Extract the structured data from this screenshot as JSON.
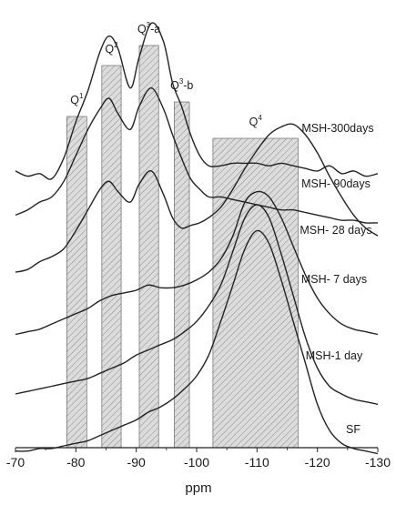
{
  "chart_data": {
    "type": "line",
    "title": "",
    "xlabel": "ppm",
    "ylabel": "",
    "xlim": [
      -70,
      -130
    ],
    "x_reversed": true,
    "x_ticks": [
      -70,
      -80,
      -90,
      -100,
      -110,
      -120,
      -130
    ],
    "x_tick_labels": [
      "-70",
      "-80",
      "-90",
      "-100",
      "-110",
      "-120",
      "-130"
    ],
    "grid": false,
    "legend": "labels at right end of each curve",
    "bands": [
      {
        "label": "Q1",
        "main": "Q",
        "sup": "1",
        "from": -78.5,
        "to": -81.8
      },
      {
        "label": "Q2",
        "main": "Q",
        "sup": "2",
        "from": -84.3,
        "to": -87.5
      },
      {
        "label": "Q3-a",
        "main": "Q",
        "sup": "3",
        "suffix": "-a",
        "from": -90.5,
        "to": -93.7
      },
      {
        "label": "Q3-b",
        "main": "Q",
        "sup": "3",
        "suffix": "-b",
        "from": -96.3,
        "to": -98.8
      },
      {
        "label": "Q4",
        "main": "Q",
        "sup": "4",
        "from": -102.7,
        "to": -116.8
      }
    ],
    "series": [
      {
        "name": "MSH-300days",
        "x": [
          -70,
          -72,
          -74,
          -76,
          -78,
          -80,
          -82,
          -84,
          -85.5,
          -87,
          -89,
          -90.5,
          -92.5,
          -94.5,
          -96,
          -97.5,
          -99,
          -100.5,
          -102,
          -104,
          -106,
          -108,
          -110,
          -112,
          -114,
          -116,
          -118,
          -120,
          -122,
          -124,
          -126,
          -128,
          -130
        ],
        "y": [
          38,
          36,
          37,
          35,
          43,
          57,
          69,
          84,
          90,
          85,
          70,
          82,
          95,
          88,
          72,
          63,
          52,
          44,
          40,
          40,
          41,
          41,
          41,
          40,
          41,
          40,
          39,
          38,
          40,
          37,
          38,
          36,
          37
        ]
      },
      {
        "name": "MSH- 90days",
        "x": [
          -70,
          -72,
          -74,
          -76,
          -78,
          -80,
          -82,
          -84,
          -85.5,
          -87,
          -89,
          -90.5,
          -92.5,
          -94.5,
          -96,
          -97.5,
          -99,
          -100.5,
          -102,
          -104,
          -106,
          -108,
          -110,
          -112,
          -114,
          -116,
          -118,
          -120,
          -122,
          -124,
          -126,
          -128,
          -130
        ],
        "y": [
          21,
          23,
          26,
          28,
          34,
          44,
          54,
          62,
          66,
          60,
          54,
          63,
          70,
          62,
          52,
          43,
          35,
          31,
          28,
          28,
          27,
          26,
          25,
          24,
          23,
          23,
          22,
          21,
          20,
          19,
          19,
          18,
          18
        ]
      },
      {
        "name": "MSH- 28 days",
        "x": [
          -70,
          -72,
          -74,
          -76,
          -78,
          -80,
          -82,
          -84,
          -85.5,
          -87,
          -89,
          -90.5,
          -92.5,
          -94.5,
          -96,
          -97.5,
          -99,
          -100.5,
          -102,
          -104,
          -106,
          -108,
          -110,
          -112,
          -114,
          -116,
          -118,
          -120,
          -122,
          -124,
          -126,
          -128,
          -130
        ],
        "y": [
          -1,
          0,
          3,
          5,
          8,
          15,
          23,
          31,
          34,
          30,
          26,
          33,
          38,
          29,
          20,
          16,
          17,
          18,
          20,
          24,
          31,
          39,
          46,
          52,
          55,
          56,
          52,
          45,
          36,
          28,
          21,
          16,
          13
        ]
      },
      {
        "name": "MSH- 7 days",
        "x": [
          -70,
          -72,
          -74,
          -76,
          -78,
          -80,
          -82,
          -84,
          -86,
          -88,
          -90,
          -92,
          -94,
          -96,
          -98,
          -100,
          -102,
          -104,
          -106,
          -108,
          -110,
          -112,
          -114,
          -116,
          -118,
          -120,
          -122,
          -124,
          -126,
          -128,
          -130
        ],
        "y": [
          -25,
          -24,
          -23,
          -21,
          -19,
          -17,
          -15,
          -12,
          -10,
          -9,
          -8,
          -6,
          -7,
          -7,
          -6,
          -4,
          -1,
          4,
          13,
          26,
          30,
          28,
          20,
          9,
          -2,
          -11,
          -17,
          -21,
          -23,
          -24,
          -25
        ]
      },
      {
        "name": "MSH-1 day",
        "x": [
          -70,
          -72,
          -74,
          -76,
          -78,
          -80,
          -82,
          -84,
          -86,
          -88,
          -90,
          -92,
          -94,
          -96,
          -98,
          -100,
          -102,
          -104,
          -106,
          -108,
          -110,
          -112,
          -114,
          -116,
          -118,
          -120,
          -122,
          -124,
          -126,
          -128,
          -130
        ],
        "y": [
          -48,
          -47,
          -46,
          -45,
          -44,
          -43,
          -42,
          -40,
          -38,
          -36,
          -33,
          -31,
          -29,
          -27,
          -24,
          -20,
          -14,
          -6,
          7,
          20,
          25,
          20,
          6,
          -10,
          -26,
          -38,
          -45,
          -48,
          -50,
          -51,
          -52
        ]
      },
      {
        "name": "SF",
        "x": [
          -70,
          -72,
          -74,
          -76,
          -78,
          -80,
          -82,
          -84,
          -86,
          -88,
          -90,
          -92,
          -94,
          -96,
          -98,
          -100,
          -102,
          -104,
          -106,
          -108,
          -110,
          -112,
          -114,
          -116,
          -118,
          -120,
          -122,
          -124,
          -126,
          -128,
          -130
        ],
        "y": [
          -70,
          -70,
          -69,
          -69,
          -68,
          -67,
          -66,
          -64,
          -62,
          -60,
          -58,
          -55,
          -53,
          -50,
          -46,
          -41,
          -33,
          -20,
          -6,
          8,
          15,
          10,
          -4,
          -20,
          -36,
          -52,
          -62,
          -67,
          -69,
          -70,
          -71
        ]
      }
    ],
    "y_scale": {
      "min": -71.5,
      "max": 97
    }
  }
}
